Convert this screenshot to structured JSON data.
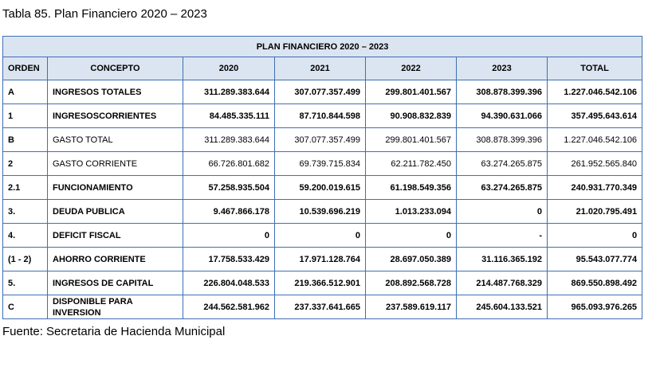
{
  "caption": "Tabla 85.  Plan Financiero 2020 – 2023",
  "table_title": "PLAN FINANCIERO 2020 – 2023",
  "headers": [
    "ORDEN",
    "CONCEPTO",
    "2020",
    "2021",
    "2022",
    "2023",
    "TOTAL"
  ],
  "rows": [
    {
      "orden": "A",
      "concepto": "INGRESOS TOTALES",
      "v2020": "311.289.383.644",
      "v2021": "307.077.357.499",
      "v2022": "299.801.401.567",
      "v2023": "308.878.399.396",
      "total": "1.227.046.542.106",
      "bold": true
    },
    {
      "orden": "1",
      "concepto": "INGRESOSCORRIENTES",
      "v2020": "84.485.335.111",
      "v2021": "87.710.844.598",
      "v2022": "90.908.832.839",
      "v2023": "94.390.631.066",
      "total": "357.495.643.614",
      "bold": true
    },
    {
      "orden": "B",
      "concepto": "GASTO TOTAL",
      "v2020": "311.289.383.644",
      "v2021": "307.077.357.499",
      "v2022": "299.801.401.567",
      "v2023": "308.878.399.396",
      "total": "1.227.046.542.106",
      "bold": false
    },
    {
      "orden": "2",
      "concepto": "GASTO CORRIENTE",
      "v2020": "66.726.801.682",
      "v2021": "69.739.715.834",
      "v2022": "62.211.782.450",
      "v2023": "63.274.265.875",
      "total": "261.952.565.840",
      "bold": false
    },
    {
      "orden": "2.1",
      "concepto": "FUNCIONAMIENTO",
      "v2020": "57.258.935.504",
      "v2021": "59.200.019.615",
      "v2022": "61.198.549.356",
      "v2023": "63.274.265.875",
      "total": "240.931.770.349",
      "bold": true
    },
    {
      "orden": "3.",
      "concepto": "DEUDA PUBLICA",
      "v2020": "9.467.866.178",
      "v2021": "10.539.696.219",
      "v2022": "1.013.233.094",
      "v2023": "0",
      "total": "21.020.795.491",
      "bold": true
    },
    {
      "orden": "4.",
      "concepto": "DEFICIT FISCAL",
      "v2020": "0",
      "v2021": "0",
      "v2022": "0",
      "v2023": "-",
      "total": "0",
      "bold": true
    },
    {
      "orden": "(1 - 2)",
      "concepto": "AHORRO CORRIENTE",
      "v2020": "17.758.533.429",
      "v2021": "17.971.128.764",
      "v2022": "28.697.050.389",
      "v2023": "31.116.365.192",
      "total": "95.543.077.774",
      "bold": true
    },
    {
      "orden": "5.",
      "concepto": "INGRESOS DE CAPITAL",
      "v2020": "226.804.048.533",
      "v2021": "219.366.512.901",
      "v2022": "208.892.568.728",
      "v2023": "214.487.768.329",
      "total": "869.550.898.492",
      "bold": true
    },
    {
      "orden": "C",
      "concepto": "DISPONIBLE PARA INVERSION",
      "v2020": "244.562.581.962",
      "v2021": "237.337.641.665",
      "v2022": "237.589.619.117",
      "v2023": "245.604.133.521",
      "total": "965.093.976.265",
      "bold": true
    }
  ],
  "source": "Fuente: Secretaria de Hacienda Municipal",
  "colors": {
    "border": "#3f6fb3",
    "header_bg": "#dbe5f1"
  }
}
